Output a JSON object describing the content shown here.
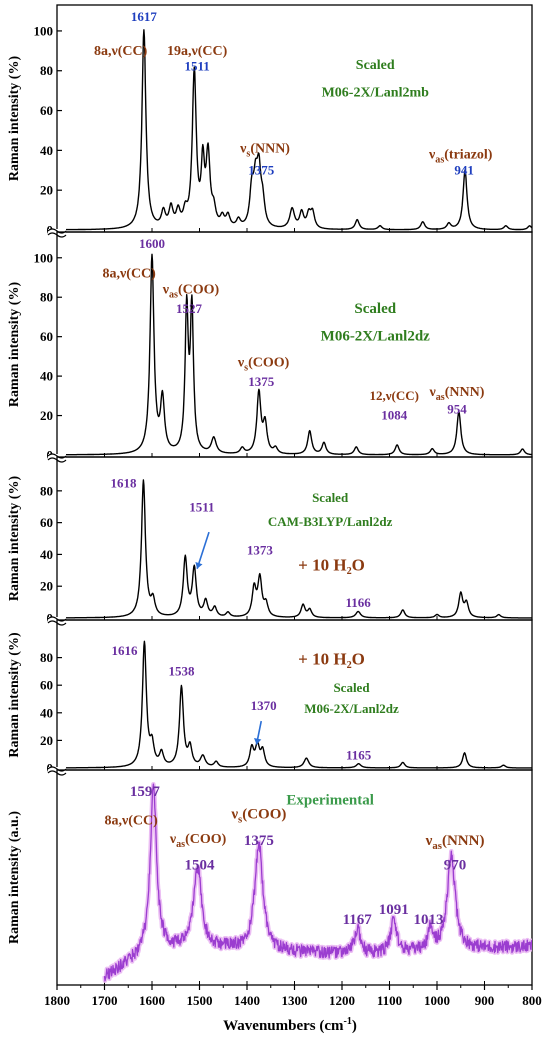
{
  "chart_data": {
    "type": "line",
    "xlabel": "Wavenumbers (cm⁻¹)",
    "xlim": [
      1800,
      800
    ],
    "x_ticks": [
      1800,
      1700,
      1600,
      1500,
      1400,
      1300,
      1200,
      1100,
      1000,
      900,
      800
    ],
    "panels": [
      {
        "name": "M06-2X/Lanl2mb",
        "ylabel": "Raman intensity (%)",
        "ylim": [
          0,
          108
        ],
        "y_ticks": [
          0,
          20,
          40,
          60,
          80,
          100
        ],
        "line_color": "#000000",
        "peaks": [
          {
            "x": 1617,
            "y": 100,
            "w": 5
          },
          {
            "x": 1576,
            "y": 8,
            "w": 5
          },
          {
            "x": 1560,
            "y": 10,
            "w": 5
          },
          {
            "x": 1545,
            "y": 8,
            "w": 5
          },
          {
            "x": 1530,
            "y": 7,
            "w": 5
          },
          {
            "x": 1511,
            "y": 78,
            "w": 5
          },
          {
            "x": 1493,
            "y": 30,
            "w": 4
          },
          {
            "x": 1482,
            "y": 36,
            "w": 5
          },
          {
            "x": 1470,
            "y": 8,
            "w": 5
          },
          {
            "x": 1452,
            "y": 5,
            "w": 5
          },
          {
            "x": 1440,
            "y": 6,
            "w": 5
          },
          {
            "x": 1418,
            "y": 4,
            "w": 5
          },
          {
            "x": 1390,
            "y": 18,
            "w": 5
          },
          {
            "x": 1382,
            "y": 20,
            "w": 5
          },
          {
            "x": 1375,
            "y": 26,
            "w": 5
          },
          {
            "x": 1367,
            "y": 12,
            "w": 5
          },
          {
            "x": 1305,
            "y": 10,
            "w": 6
          },
          {
            "x": 1285,
            "y": 8,
            "w": 5
          },
          {
            "x": 1270,
            "y": 7,
            "w": 5
          },
          {
            "x": 1262,
            "y": 8,
            "w": 5
          },
          {
            "x": 1168,
            "y": 5,
            "w": 5
          },
          {
            "x": 1120,
            "y": 2,
            "w": 5
          },
          {
            "x": 1030,
            "y": 4,
            "w": 5
          },
          {
            "x": 975,
            "y": 3,
            "w": 5
          },
          {
            "x": 941,
            "y": 30,
            "w": 5
          },
          {
            "x": 855,
            "y": 2,
            "w": 5
          },
          {
            "x": 805,
            "y": 2,
            "w": 5
          }
        ],
        "labels": [
          {
            "text": "1617",
            "x": 1617,
            "y": 105,
            "color": "#1f3fbf",
            "size": 13
          },
          {
            "text": "8a,ν(CC)",
            "x": 1666,
            "y": 88,
            "color": "#8b3a10",
            "size": 14
          },
          {
            "text": "19a,ν(CC)",
            "x": 1505,
            "y": 88,
            "color": "#8b3a10",
            "size": 14
          },
          {
            "text": "1511",
            "x": 1505,
            "y": 80,
            "color": "#1f3fbf",
            "size": 13
          },
          {
            "text": "Scaled",
            "x": 1130,
            "y": 81,
            "color": "#2f7d1e",
            "size": 14
          },
          {
            "text": "M06-2X/Lanl2mb",
            "x": 1130,
            "y": 67,
            "color": "#2f7d1e",
            "size": 14
          },
          {
            "text": "νs(NNN)",
            "x": 1362,
            "y": 39,
            "color": "#8b3a10",
            "size": 14
          },
          {
            "text": "1375",
            "x": 1370,
            "y": 28,
            "color": "#1f3fbf",
            "size": 13
          },
          {
            "text": "νas(triazol)",
            "x": 950,
            "y": 36,
            "color": "#8b3a10",
            "size": 14
          },
          {
            "text": "941",
            "x": 943,
            "y": 28,
            "color": "#1f3fbf",
            "size": 13
          }
        ]
      },
      {
        "name": "M06-2X/Lanl2dz",
        "ylabel": "Raman intensity (%)",
        "ylim": [
          0,
          108
        ],
        "y_ticks": [
          0,
          20,
          40,
          60,
          80,
          100
        ],
        "line_color": "#000000",
        "peaks": [
          {
            "x": 1600,
            "y": 100,
            "w": 5
          },
          {
            "x": 1578,
            "y": 27,
            "w": 5
          },
          {
            "x": 1527,
            "y": 72,
            "w": 4
          },
          {
            "x": 1516,
            "y": 72,
            "w": 4
          },
          {
            "x": 1470,
            "y": 8,
            "w": 6
          },
          {
            "x": 1410,
            "y": 3,
            "w": 5
          },
          {
            "x": 1375,
            "y": 31,
            "w": 5
          },
          {
            "x": 1362,
            "y": 15,
            "w": 5
          },
          {
            "x": 1340,
            "y": 3,
            "w": 5
          },
          {
            "x": 1268,
            "y": 12,
            "w": 5
          },
          {
            "x": 1238,
            "y": 6,
            "w": 5
          },
          {
            "x": 1170,
            "y": 4,
            "w": 5
          },
          {
            "x": 1084,
            "y": 5,
            "w": 5
          },
          {
            "x": 1010,
            "y": 3,
            "w": 5
          },
          {
            "x": 954,
            "y": 22,
            "w": 5
          },
          {
            "x": 820,
            "y": 3,
            "w": 5
          }
        ],
        "labels": [
          {
            "text": "1600",
            "x": 1600,
            "y": 105,
            "color": "#6a2fa0",
            "size": 13
          },
          {
            "text": "8a,ν(CC)",
            "x": 1648,
            "y": 90,
            "color": "#8b3a10",
            "size": 14
          },
          {
            "text": "νas(COO)",
            "x": 1518,
            "y": 82,
            "color": "#8b3a10",
            "size": 14
          },
          {
            "text": "1527",
            "x": 1522,
            "y": 72,
            "color": "#6a2fa0",
            "size": 13
          },
          {
            "text": "Scaled",
            "x": 1130,
            "y": 72,
            "color": "#2f7d1e",
            "size": 15
          },
          {
            "text": "M06-2X/Lanl2dz",
            "x": 1130,
            "y": 58,
            "color": "#2f7d1e",
            "size": 15
          },
          {
            "text": "νs(COO)",
            "x": 1365,
            "y": 45,
            "color": "#8b3a10",
            "size": 14
          },
          {
            "text": "1375",
            "x": 1370,
            "y": 35,
            "color": "#6a2fa0",
            "size": 13
          },
          {
            "text": "12,ν(CC)",
            "x": 1090,
            "y": 28,
            "color": "#8b3a10",
            "size": 13
          },
          {
            "text": "1084",
            "x": 1090,
            "y": 18,
            "color": "#6a2fa0",
            "size": 13
          },
          {
            "text": "νas(NNN)",
            "x": 958,
            "y": 30,
            "color": "#8b3a10",
            "size": 14
          },
          {
            "text": "954",
            "x": 958,
            "y": 21,
            "color": "#6a2fa0",
            "size": 13
          }
        ]
      },
      {
        "name": "CAM-B3LYP/Lanl2dz",
        "ylabel": "Raman intensity (%)",
        "ylim": [
          0,
          95
        ],
        "y_ticks": [
          0,
          20,
          40,
          60,
          80
        ],
        "line_color": "#000000",
        "peaks": [
          {
            "x": 1618,
            "y": 86,
            "w": 5
          },
          {
            "x": 1598,
            "y": 10,
            "w": 5
          },
          {
            "x": 1530,
            "y": 37,
            "w": 5
          },
          {
            "x": 1511,
            "y": 30,
            "w": 5
          },
          {
            "x": 1487,
            "y": 10,
            "w": 5
          },
          {
            "x": 1468,
            "y": 6,
            "w": 5
          },
          {
            "x": 1440,
            "y": 3,
            "w": 5
          },
          {
            "x": 1385,
            "y": 18,
            "w": 5
          },
          {
            "x": 1373,
            "y": 24,
            "w": 5
          },
          {
            "x": 1360,
            "y": 8,
            "w": 5
          },
          {
            "x": 1282,
            "y": 8,
            "w": 5
          },
          {
            "x": 1268,
            "y": 5,
            "w": 5
          },
          {
            "x": 1166,
            "y": 4,
            "w": 6
          },
          {
            "x": 1072,
            "y": 5,
            "w": 5
          },
          {
            "x": 1000,
            "y": 2,
            "w": 5
          },
          {
            "x": 950,
            "y": 15,
            "w": 5
          },
          {
            "x": 938,
            "y": 9,
            "w": 5
          },
          {
            "x": 870,
            "y": 2,
            "w": 5
          }
        ],
        "labels": [
          {
            "text": "1618",
            "x": 1660,
            "y": 82,
            "color": "#6a2fa0",
            "size": 13
          },
          {
            "text": "Scaled",
            "x": 1225,
            "y": 73,
            "color": "#2f7d1e",
            "size": 13
          },
          {
            "text": "CAM-B3LYP/Lanl2dz",
            "x": 1225,
            "y": 58,
            "color": "#2f7d1e",
            "size": 13
          },
          {
            "text": "1511",
            "x": 1495,
            "y": 67,
            "color": "#6a2fa0",
            "size": 13
          },
          {
            "text": "1373",
            "x": 1373,
            "y": 40,
            "color": "#6a2fa0",
            "size": 13
          },
          {
            "text": "+ 10 H₂O",
            "x": 1222,
            "y": 30,
            "color": "#8b3a10",
            "size": 17
          },
          {
            "text": "1166",
            "x": 1166,
            "y": 7,
            "color": "#6a2fa0",
            "size": 13
          }
        ],
        "arrow": {
          "from": [
            1480,
            54
          ],
          "to": [
            1505,
            31
          ]
        }
      },
      {
        "name": "M06-2X/Lanl2dz + 10 H2O",
        "ylabel": "Raman intensity (%)",
        "ylim": [
          0,
          100
        ],
        "y_ticks": [
          0,
          20,
          40,
          60,
          80
        ],
        "line_color": "#000000",
        "peaks": [
          {
            "x": 1616,
            "y": 90,
            "w": 5
          },
          {
            "x": 1600,
            "y": 15,
            "w": 5
          },
          {
            "x": 1580,
            "y": 10,
            "w": 5
          },
          {
            "x": 1538,
            "y": 58,
            "w": 5
          },
          {
            "x": 1520,
            "y": 14,
            "w": 5
          },
          {
            "x": 1493,
            "y": 8,
            "w": 6
          },
          {
            "x": 1465,
            "y": 4,
            "w": 5
          },
          {
            "x": 1390,
            "y": 14,
            "w": 5
          },
          {
            "x": 1378,
            "y": 15,
            "w": 5
          },
          {
            "x": 1367,
            "y": 12,
            "w": 5
          },
          {
            "x": 1275,
            "y": 7,
            "w": 6
          },
          {
            "x": 1165,
            "y": 3,
            "w": 6
          },
          {
            "x": 1072,
            "y": 4,
            "w": 5
          },
          {
            "x": 942,
            "y": 11,
            "w": 5
          },
          {
            "x": 860,
            "y": 2,
            "w": 5
          }
        ],
        "labels": [
          {
            "text": "1616",
            "x": 1658,
            "y": 82,
            "color": "#6a2fa0",
            "size": 13
          },
          {
            "text": "1538",
            "x": 1538,
            "y": 67,
            "color": "#6a2fa0",
            "size": 13
          },
          {
            "text": "+ 10 H₂O",
            "x": 1222,
            "y": 75,
            "color": "#8b3a10",
            "size": 17
          },
          {
            "text": "Scaled",
            "x": 1180,
            "y": 55,
            "color": "#2f7d1e",
            "size": 13
          },
          {
            "text": "M06-2X/Lanl2dz",
            "x": 1180,
            "y": 40,
            "color": "#2f7d1e",
            "size": 13
          },
          {
            "text": "1370",
            "x": 1365,
            "y": 42,
            "color": "#6a2fa0",
            "size": 13
          },
          {
            "text": "1165",
            "x": 1165,
            "y": 6,
            "color": "#6a2fa0",
            "size": 13
          }
        ],
        "arrow": {
          "from": [
            1370,
            34
          ],
          "to": [
            1380,
            17
          ]
        }
      },
      {
        "name": "Experimental",
        "ylabel": "Raman intensity (a.u.)",
        "ylim": [
          0,
          100
        ],
        "y_ticks": [],
        "line_color": "#9b3dd0",
        "experimental": true,
        "x_range": [
          1700,
          800
        ],
        "baseline": [
          [
            1700,
            3
          ],
          [
            1600,
            16
          ],
          [
            1450,
            17
          ],
          [
            1300,
            15
          ],
          [
            1150,
            14
          ],
          [
            1000,
            16
          ],
          [
            800,
            18
          ]
        ],
        "peaks": [
          {
            "x": 1597,
            "y": 80,
            "w": 8
          },
          {
            "x": 1504,
            "y": 40,
            "w": 10
          },
          {
            "x": 1375,
            "y": 53,
            "w": 10
          },
          {
            "x": 1167,
            "y": 12,
            "w": 8
          },
          {
            "x": 1091,
            "y": 17,
            "w": 7
          },
          {
            "x": 1013,
            "y": 11,
            "w": 6
          },
          {
            "x": 970,
            "y": 46,
            "w": 10
          }
        ],
        "labels": [
          {
            "text": "1597",
            "x": 1615,
            "y": 92,
            "color": "#6a2fa0",
            "size": 15
          },
          {
            "text": "8a,ν(CC)",
            "x": 1644,
            "y": 78,
            "color": "#8b3a10",
            "size": 14
          },
          {
            "text": "Experimental",
            "x": 1225,
            "y": 88,
            "color": "#3a9a4a",
            "size": 15
          },
          {
            "text": "νs(COO)",
            "x": 1375,
            "y": 81,
            "color": "#8b3a10",
            "size": 15
          },
          {
            "text": "1375",
            "x": 1375,
            "y": 68,
            "color": "#6a2fa0",
            "size": 15
          },
          {
            "text": "νas(COO)",
            "x": 1503,
            "y": 69,
            "color": "#8b3a10",
            "size": 14
          },
          {
            "text": "1504",
            "x": 1500,
            "y": 56,
            "color": "#6a2fa0",
            "size": 15
          },
          {
            "text": "νas(NNN)",
            "x": 962,
            "y": 68,
            "color": "#8b3a10",
            "size": 15
          },
          {
            "text": "970",
            "x": 962,
            "y": 56,
            "color": "#6a2fa0",
            "size": 15
          },
          {
            "text": "1167",
            "x": 1168,
            "y": 29,
            "color": "#6a2fa0",
            "size": 15
          },
          {
            "text": "1091",
            "x": 1091,
            "y": 34,
            "color": "#6a2fa0",
            "size": 15
          },
          {
            "text": "1013",
            "x": 1018,
            "y": 29,
            "color": "#6a2fa0",
            "size": 15
          }
        ]
      }
    ]
  }
}
